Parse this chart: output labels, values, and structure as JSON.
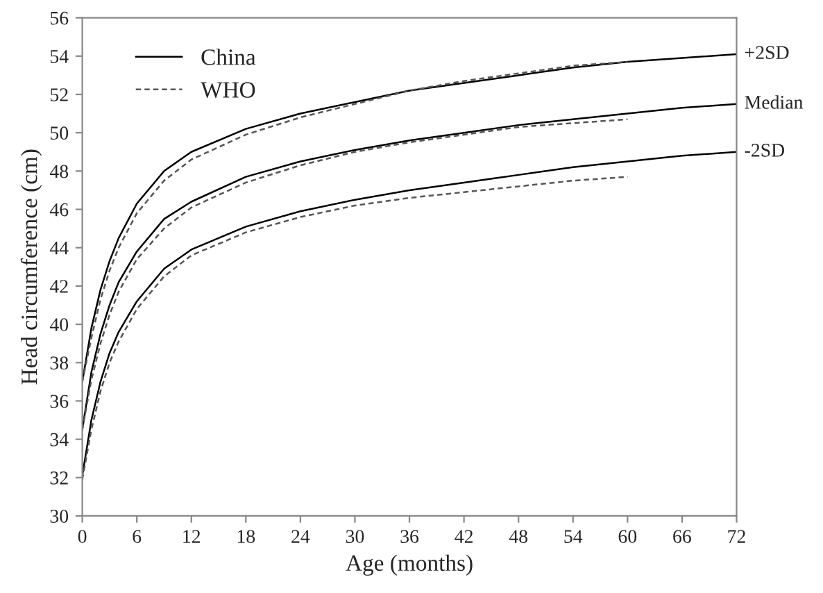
{
  "chart_data": {
    "type": "line",
    "xlabel": "Age (months)",
    "ylabel": "Head circumference (cm)",
    "xlim": [
      0,
      72
    ],
    "xticks": [
      0,
      6,
      12,
      18,
      24,
      30,
      36,
      42,
      48,
      54,
      60,
      66,
      72
    ],
    "ylim": [
      30,
      56
    ],
    "yticks": [
      30,
      32,
      34,
      36,
      38,
      40,
      42,
      44,
      46,
      48,
      50,
      52,
      54,
      56
    ],
    "grid": false,
    "legend": "top left",
    "marker": "none",
    "series": [
      {
        "name": "China",
        "color": "#000000",
        "line_style": "solid",
        "x": [
          0,
          1,
          2,
          3,
          4,
          6,
          9,
          12,
          18,
          24,
          30,
          36,
          42,
          48,
          54,
          60,
          66,
          72
        ],
        "values": [
          37.0,
          39.8,
          41.8,
          43.3,
          44.5,
          46.3,
          48.0,
          49.0,
          50.2,
          51.0,
          51.6,
          52.2,
          52.6,
          53.0,
          53.4,
          53.7,
          53.9,
          54.1
        ]
      },
      {
        "color": "#000000",
        "line_style": "solid",
        "x": [
          0,
          1,
          2,
          3,
          4,
          6,
          9,
          12,
          18,
          24,
          30,
          36,
          42,
          48,
          54,
          60,
          66,
          72
        ],
        "values": [
          34.5,
          37.5,
          39.5,
          41.0,
          42.2,
          43.8,
          45.5,
          46.4,
          47.7,
          48.5,
          49.1,
          49.6,
          50.0,
          50.4,
          50.7,
          51.0,
          51.3,
          51.5
        ]
      },
      {
        "color": "#000000",
        "line_style": "solid",
        "x": [
          0,
          1,
          2,
          3,
          4,
          6,
          9,
          12,
          18,
          24,
          30,
          36,
          42,
          48,
          54,
          60,
          66,
          72
        ],
        "values": [
          32.1,
          35.0,
          37.0,
          38.5,
          39.6,
          41.2,
          42.9,
          43.9,
          45.1,
          45.9,
          46.5,
          47.0,
          47.4,
          47.8,
          48.2,
          48.5,
          48.8,
          49.0
        ]
      },
      {
        "name": "WHO",
        "color": "#555555",
        "line_style": "dashed",
        "x": [
          0,
          1,
          2,
          3,
          4,
          6,
          9,
          12,
          18,
          24,
          30,
          36,
          42,
          48,
          54,
          60
        ],
        "values": [
          37.0,
          39.3,
          41.3,
          42.8,
          44.0,
          45.8,
          47.5,
          48.6,
          49.9,
          50.8,
          51.5,
          52.2,
          52.7,
          53.1,
          53.5,
          53.7
        ]
      },
      {
        "color": "#555555",
        "line_style": "dashed",
        "x": [
          0,
          1,
          2,
          3,
          4,
          6,
          9,
          12,
          18,
          24,
          30,
          36,
          42,
          48,
          54,
          60
        ],
        "values": [
          34.5,
          37.1,
          39.0,
          40.5,
          41.7,
          43.4,
          45.0,
          46.1,
          47.4,
          48.3,
          49.0,
          49.5,
          49.9,
          50.3,
          50.5,
          50.7
        ]
      },
      {
        "color": "#555555",
        "line_style": "dashed",
        "x": [
          0,
          1,
          2,
          3,
          4,
          6,
          9,
          12,
          18,
          24,
          30,
          36,
          42,
          48,
          54,
          60
        ],
        "values": [
          31.9,
          34.5,
          36.5,
          38.0,
          39.1,
          40.8,
          42.5,
          43.6,
          44.8,
          45.6,
          46.2,
          46.6,
          46.9,
          47.2,
          47.5,
          47.7
        ]
      }
    ],
    "annotations": [
      "+2SD",
      "Median",
      "-2SD"
    ]
  }
}
